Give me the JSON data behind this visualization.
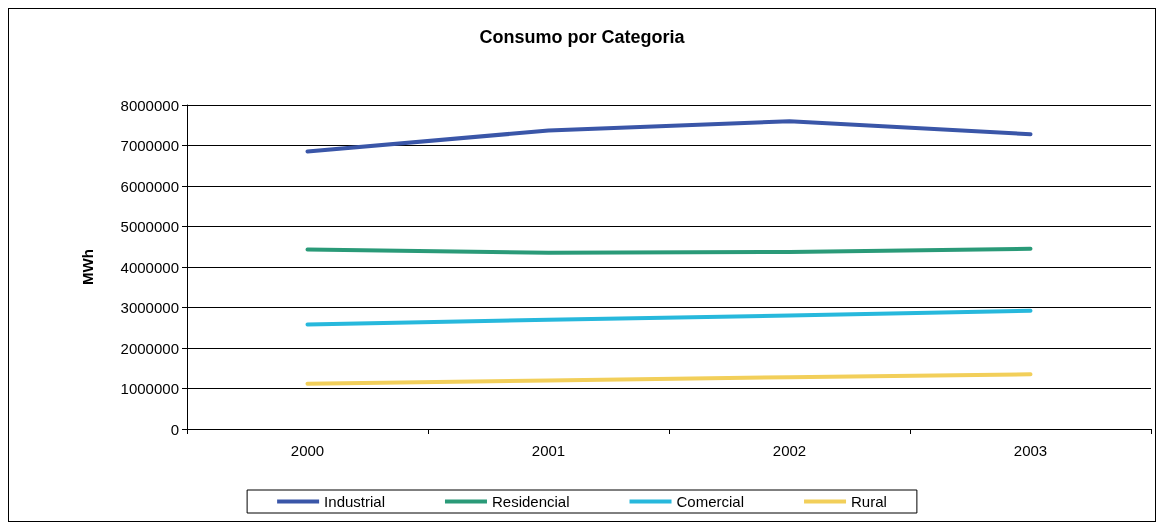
{
  "chart_data": {
    "type": "line",
    "title": "Consumo por Categoria",
    "ylabel": "MWh",
    "categories": [
      "2000",
      "2001",
      "2002",
      "2003"
    ],
    "series": [
      {
        "name": "Industrial",
        "color": "#3a56a8",
        "values": [
          6850000,
          7370000,
          7600000,
          7280000
        ]
      },
      {
        "name": "Residencial",
        "color": "#2a9a78",
        "values": [
          4430000,
          4350000,
          4370000,
          4450000
        ]
      },
      {
        "name": "Comercial",
        "color": "#27b8dc",
        "values": [
          2580000,
          2700000,
          2800000,
          2920000
        ]
      },
      {
        "name": "Rural",
        "color": "#f2cf5a",
        "values": [
          1120000,
          1200000,
          1280000,
          1350000
        ]
      }
    ],
    "ylim": [
      0,
      8000000
    ],
    "yticks": [
      0,
      1000000,
      2000000,
      3000000,
      4000000,
      5000000,
      6000000,
      7000000,
      8000000
    ],
    "grid": "y",
    "legend": "bottom",
    "marker": "none",
    "line_style": "solid"
  }
}
